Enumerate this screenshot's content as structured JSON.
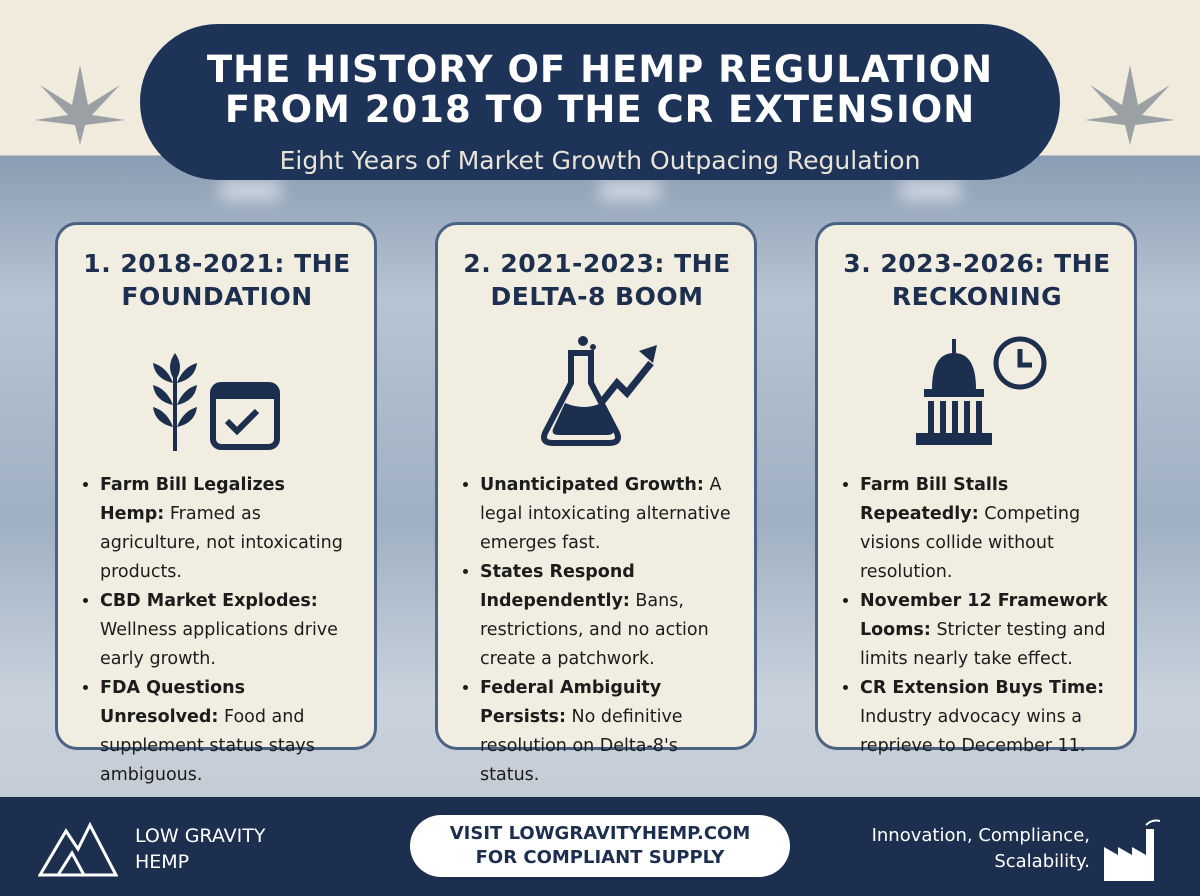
{
  "header": {
    "title_lines": [
      "THE HISTORY OF HEMP REGULATION",
      "FROM 2018 TO THE CR EXTENSION"
    ],
    "subtitle": "Eight Years of Market Growth Outpacing Regulation"
  },
  "cards": [
    {
      "title_lines": [
        "1. 2018-2021: THE",
        "FOUNDATION"
      ],
      "bullets": [
        {
          "term": "Farm Bill Legalizes Hemp:",
          "text": "Framed as agriculture, not intoxicating products."
        },
        {
          "term": "CBD Market Explodes:",
          "text": "Wellness applications drive early growth."
        },
        {
          "term": "FDA Questions Unresolved:",
          "text": "Food and supplement status stays ambiguous."
        }
      ]
    },
    {
      "title_lines": [
        "2. 2021-2023: THE",
        "DELTA-8 BOOM"
      ],
      "bullets": [
        {
          "term": "Unanticipated Growth:",
          "text": "A legal intoxicating alternative emerges fast."
        },
        {
          "term": "States Respond Independently:",
          "text": "Bans, restrictions, and no action create a patchwork."
        },
        {
          "term": "Federal Ambiguity Persists:",
          "text": "No definitive resolution on Delta-8's status."
        }
      ]
    },
    {
      "title_lines": [
        "3. 2023-2026: THE",
        "RECKONING"
      ],
      "bullets": [
        {
          "term": "Farm Bill Stalls Repeatedly:",
          "text": "Competing visions collide without resolution."
        },
        {
          "term": "November 12 Framework Looms:",
          "text": "Stricter testing and limits nearly take effect."
        },
        {
          "term": "CR Extension Buys Time:",
          "text": "Industry advocacy wins a reprieve to December 11."
        }
      ]
    }
  ],
  "footer": {
    "brand_lines": [
      "LOW GRAVITY",
      "HEMP"
    ],
    "cta_lines": [
      "VISIT LOWGRAVITYHEMP.COM",
      "FOR COMPLIANT SUPPLY"
    ],
    "tagline_lines": [
      "Innovation, Compliance,",
      "Scalability."
    ]
  }
}
